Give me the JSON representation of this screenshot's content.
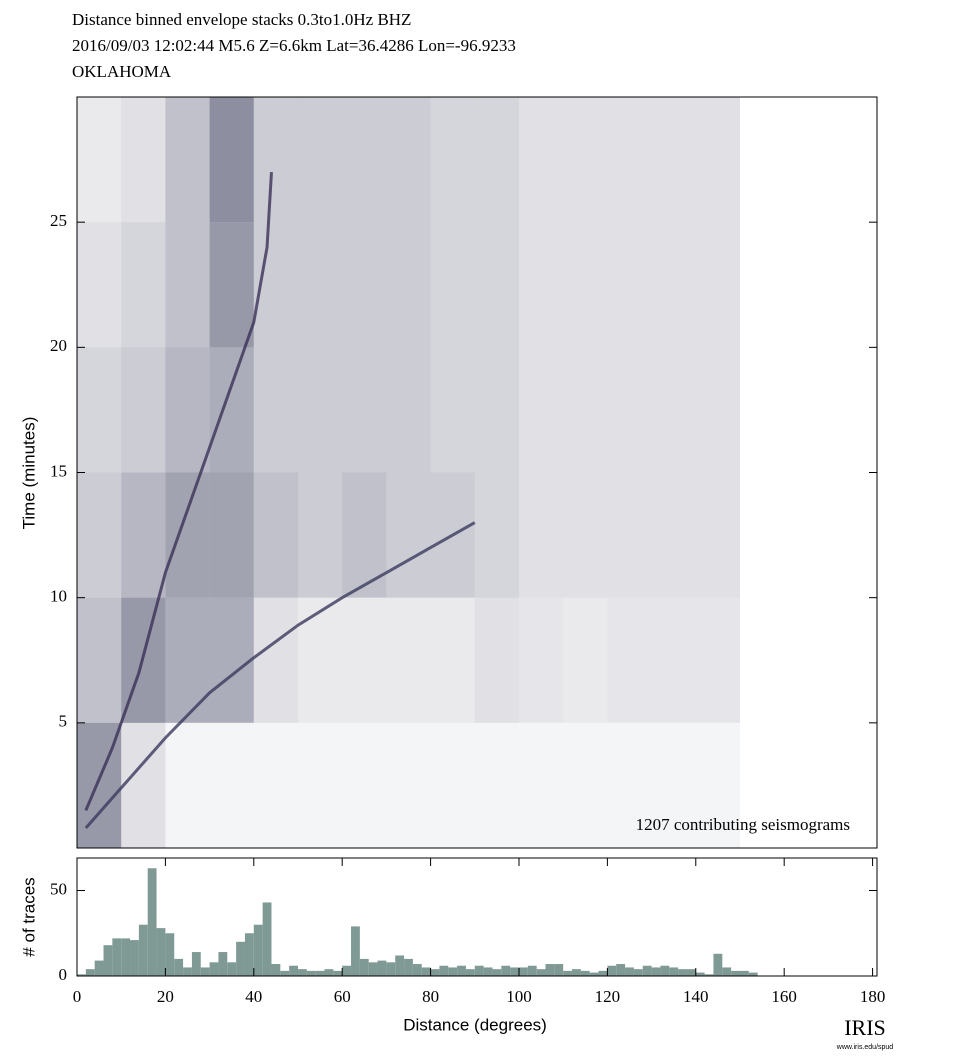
{
  "chart_data": [
    {
      "type": "heatmap",
      "title": [
        "Distance binned envelope stacks  0.3to1.0Hz  BHZ",
        "2016/09/03  12:02:44  M5.6  Z=6.6km Lat=36.4286 Lon=-96.9233",
        "OKLAHOMA"
      ],
      "ylabel": "Time (minutes)",
      "annotation": "1207 contributing seismograms",
      "xlim": [
        0,
        181
      ],
      "ylim": [
        0,
        30
      ],
      "yticks": [
        5,
        10,
        15,
        20,
        25
      ],
      "color": "#2f3252",
      "xbins": [
        0,
        10,
        20,
        30,
        40,
        50,
        60,
        70,
        80,
        90,
        100,
        110,
        120,
        130,
        140,
        150,
        160
      ],
      "ybins": [
        0,
        5,
        10,
        15,
        20,
        25,
        30
      ],
      "z": [
        [
          0.5,
          0.15,
          0.05,
          0.05,
          0.05,
          0.05,
          0.05,
          0.05,
          0.05,
          0.05,
          0.05,
          0.05,
          0.05,
          0.05,
          0.05,
          null
        ],
        [
          0.3,
          0.5,
          0.4,
          0.4,
          0.15,
          0.1,
          0.1,
          0.1,
          0.1,
          0.15,
          0.12,
          0.1,
          0.12,
          0.12,
          0.12,
          null
        ],
        [
          0.25,
          0.35,
          0.45,
          0.45,
          0.3,
          0.25,
          0.3,
          0.25,
          0.25,
          0.2,
          0.15,
          0.15,
          0.15,
          0.15,
          0.15,
          null
        ],
        [
          0.2,
          0.25,
          0.35,
          0.4,
          0.25,
          0.25,
          0.25,
          0.25,
          0.2,
          0.2,
          0.15,
          0.15,
          0.15,
          0.15,
          0.15,
          null
        ],
        [
          0.15,
          0.2,
          0.3,
          0.5,
          0.25,
          0.25,
          0.25,
          0.25,
          0.2,
          0.2,
          0.15,
          0.15,
          0.15,
          0.15,
          0.15,
          null
        ],
        [
          0.1,
          0.15,
          0.3,
          0.55,
          0.25,
          0.25,
          0.25,
          0.25,
          0.2,
          0.2,
          0.15,
          0.15,
          0.15,
          0.15,
          0.15,
          null
        ]
      ],
      "series": [
        {
          "color": "#3a3a5e",
          "x": [
            2,
            10,
            20,
            30,
            40,
            50,
            60,
            70,
            80,
            90
          ],
          "values": [
            0.8,
            2.4,
            4.4,
            6.2,
            7.6,
            8.9,
            10.0,
            11.0,
            12.0,
            13.0
          ]
        },
        {
          "color": "#3b3158",
          "x": [
            2,
            8,
            14,
            20,
            25,
            30,
            35,
            40,
            43,
            44
          ],
          "values": [
            1.5,
            4,
            7,
            11,
            13.5,
            16,
            18.5,
            21,
            24,
            27
          ]
        }
      ]
    },
    {
      "type": "histogram",
      "xlabel": "Distance (degrees)",
      "ylabel": "# of traces",
      "xlim": [
        0,
        181
      ],
      "xticks": [
        0,
        20,
        40,
        60,
        80,
        100,
        120,
        140,
        160,
        180
      ],
      "ylim": [
        0,
        69
      ],
      "yticks": [
        0,
        50
      ],
      "color": "#7f9995",
      "bins": [
        0,
        2,
        4,
        6,
        8,
        10,
        12,
        14,
        16,
        18,
        20,
        22,
        24,
        26,
        28,
        30,
        32,
        34,
        36,
        38,
        40,
        42,
        44,
        46,
        48,
        50,
        52,
        54,
        56,
        58,
        60,
        62,
        64,
        66,
        68,
        70,
        72,
        74,
        76,
        78,
        80,
        82,
        84,
        86,
        88,
        90,
        92,
        94,
        96,
        98,
        100,
        102,
        104,
        106,
        108,
        110,
        112,
        114,
        116,
        118,
        120,
        122,
        124,
        126,
        128,
        130,
        132,
        134,
        136,
        138,
        140,
        142,
        144,
        146,
        148,
        150,
        152,
        154
      ],
      "values": [
        1,
        4,
        9,
        18,
        22,
        22,
        21,
        30,
        63,
        28,
        25,
        10,
        5,
        14,
        5,
        8,
        14,
        8,
        20,
        25,
        30,
        43,
        7,
        3,
        6,
        4,
        3,
        3,
        4,
        3,
        6,
        29,
        10,
        8,
        9,
        8,
        12,
        10,
        7,
        5,
        4,
        6,
        5,
        6,
        4,
        6,
        5,
        4,
        6,
        5,
        5,
        6,
        4,
        7,
        7,
        3,
        4,
        3,
        2,
        3,
        6,
        7,
        5,
        4,
        6,
        5,
        6,
        5,
        4,
        4,
        2,
        1,
        13,
        5,
        3,
        3,
        2
      ]
    }
  ],
  "logo": {
    "text": "IRIS",
    "url": "www.iris.edu/spud"
  }
}
